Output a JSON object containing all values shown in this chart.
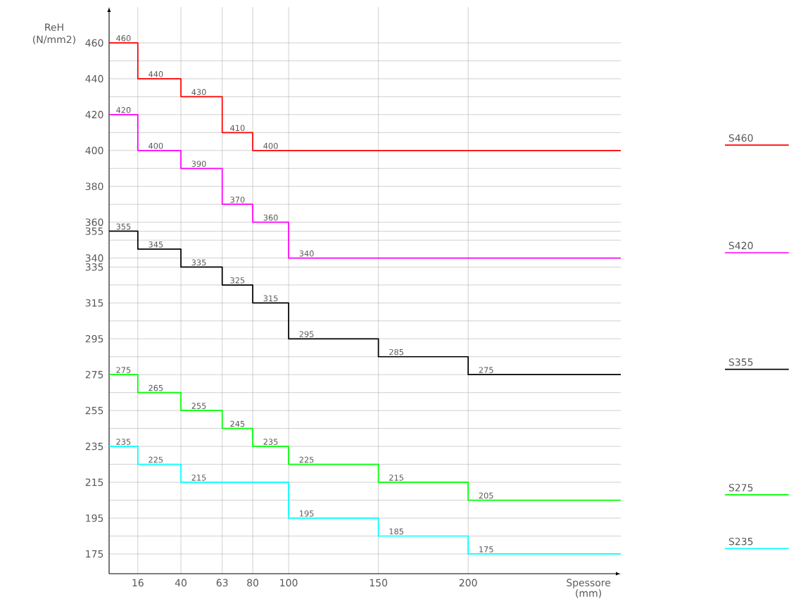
{
  "chart_data": {
    "type": "step",
    "xlabel": "Spessore (mm)",
    "ylabel": "ReH (N/mm2)",
    "xlim": [
      0,
      285
    ],
    "ylim": [
      164,
      480
    ],
    "xticks": [
      16,
      40,
      63,
      80,
      100,
      150,
      200
    ],
    "yticks": [
      460,
      {
        "value": 450,
        "label": null
      },
      440,
      {
        "value": 430,
        "label": null
      },
      420,
      {
        "value": 410,
        "label": null
      },
      400,
      {
        "value": 390,
        "label": null
      },
      380,
      {
        "value": 370,
        "label": null
      },
      360,
      355,
      {
        "value": 350,
        "label": null
      },
      340,
      335,
      {
        "value": 325,
        "label": null
      },
      315,
      {
        "value": 305,
        "label": null
      },
      295,
      {
        "value": 285,
        "label": null
      },
      275,
      {
        "value": 265,
        "label": null
      },
      255,
      {
        "value": 245,
        "label": null
      },
      235,
      {
        "value": 225,
        "label": null
      },
      215,
      {
        "value": 205,
        "label": null
      },
      195,
      {
        "value": 185,
        "label": null
      },
      175
    ],
    "grid": true,
    "legend": "right",
    "series": [
      {
        "name": "S460",
        "color": "#ff0000",
        "x": [
          0,
          16,
          40,
          63,
          80,
          285
        ],
        "values": [
          460,
          440,
          430,
          410,
          400,
          400
        ],
        "value_labels": [
          "460",
          "440",
          "430",
          "410",
          "400",
          null
        ]
      },
      {
        "name": "S420",
        "color": "#ff00ff",
        "x": [
          0,
          16,
          40,
          63,
          80,
          100,
          285
        ],
        "values": [
          420,
          400,
          390,
          370,
          360,
          340,
          340
        ],
        "value_labels": [
          "420",
          "400",
          "390",
          "370",
          "360",
          "340",
          null
        ]
      },
      {
        "name": "S355",
        "color": "#000000",
        "x": [
          0,
          16,
          40,
          63,
          80,
          100,
          150,
          200,
          285
        ],
        "values": [
          355,
          345,
          335,
          325,
          315,
          295,
          285,
          275,
          275
        ],
        "value_labels": [
          "355",
          "345",
          "335",
          "325",
          "315",
          "295",
          "285",
          "275",
          null
        ]
      },
      {
        "name": "S275",
        "color": "#00ff00",
        "x": [
          0,
          16,
          40,
          63,
          80,
          100,
          150,
          200,
          285
        ],
        "values": [
          275,
          265,
          255,
          245,
          235,
          225,
          215,
          205,
          205
        ],
        "value_labels": [
          "275",
          "265",
          "255",
          "245",
          "235",
          "225",
          "215",
          "205",
          null
        ]
      },
      {
        "name": "S235",
        "color": "#00ffff",
        "x": [
          0,
          16,
          40,
          100,
          150,
          200,
          285
        ],
        "values": [
          235,
          225,
          215,
          195,
          185,
          175,
          175
        ],
        "value_labels": [
          "235",
          "225",
          "215",
          "195",
          "185",
          "175",
          null
        ]
      }
    ]
  }
}
